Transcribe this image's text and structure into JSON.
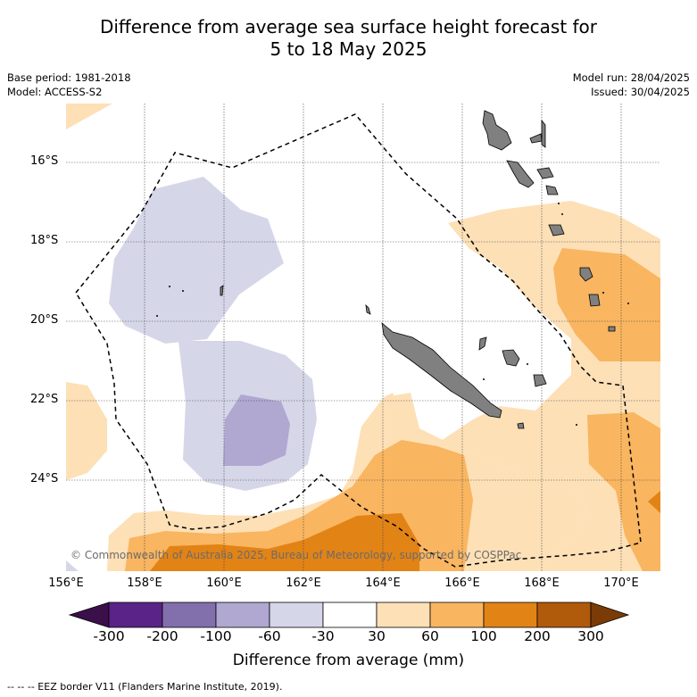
{
  "title_line1": "Difference from average sea surface height forecast for",
  "title_line2": "5 to 18 May 2025",
  "base_period": "Base period: 1981-2018",
  "model": "Model: ACCESS-S2",
  "model_run": "Model run: 28/04/2025",
  "issued": "Issued: 30/04/2025",
  "lat_labels": [
    "16°S",
    "18°S",
    "20°S",
    "22°S",
    "24°S"
  ],
  "lon_labels": [
    "156°E",
    "158°E",
    "160°E",
    "162°E",
    "164°E",
    "166°E",
    "168°E",
    "170°E"
  ],
  "copyright": "© Commonwealth of Australia 2025, Bureau of Meteorology, supported by COSPPac",
  "colorbar": {
    "ticks": [
      "-300",
      "-200",
      "-100",
      "-60",
      "-30",
      "30",
      "60",
      "100",
      "200",
      "300"
    ],
    "colors": [
      "#3b0f4a",
      "#5a2388",
      "#8270ad",
      "#b0a8d1",
      "#d6d6e9",
      "#ffffff",
      "#fde0b6",
      "#f9b560",
      "#e28316",
      "#b05a0b",
      "#7a3b06"
    ],
    "label": "Difference from average (mm)"
  },
  "legend_note": "--  --  -- EEZ border V11 (Flanders Marine Institute, 2019).",
  "land_color": "#808080"
}
